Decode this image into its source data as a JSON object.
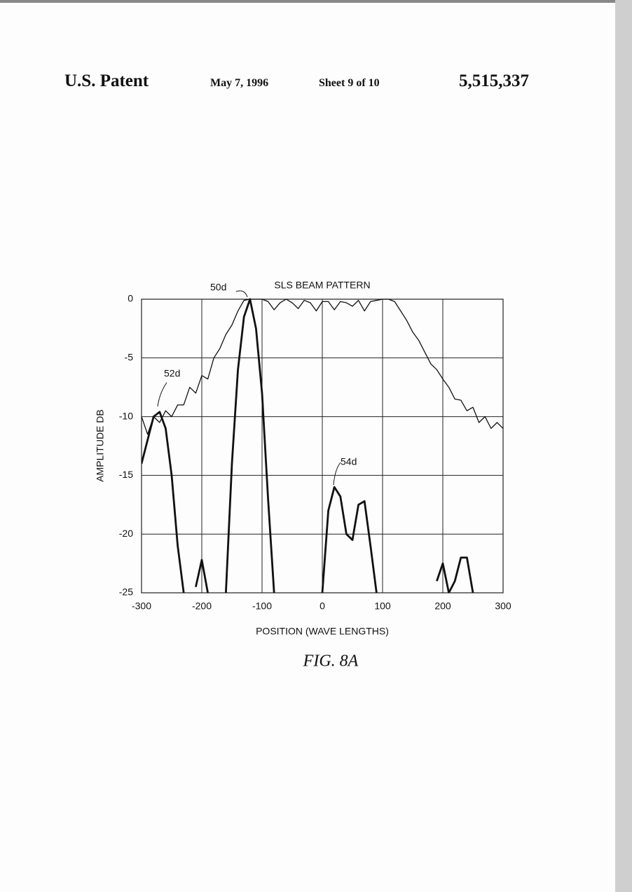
{
  "header": {
    "left": "U.S. Patent",
    "date": "May 7, 1996",
    "sheet": "Sheet 9 of 10",
    "number": "5,515,337"
  },
  "chart_data": {
    "type": "line",
    "title": "SLS BEAM PATTERN",
    "xlabel": "POSITION (WAVE LENGTHS)",
    "ylabel": "AMPLITUDE DB",
    "x": [
      -300,
      -290,
      -280,
      -270,
      -260,
      -250,
      -240,
      -230,
      -220,
      -210,
      -200,
      -190,
      -180,
      -170,
      -160,
      -150,
      -140,
      -130,
      -120,
      -110,
      -100,
      -90,
      -80,
      -70,
      -60,
      -50,
      -40,
      -30,
      -20,
      -10,
      0,
      10,
      20,
      30,
      40,
      50,
      60,
      70,
      80,
      90,
      100,
      110,
      120,
      130,
      140,
      150,
      160,
      170,
      180,
      190,
      200,
      210,
      220,
      230,
      240,
      250,
      260,
      270,
      280,
      290,
      300
    ],
    "series": [
      {
        "color": "#111111",
        "values": [
          -10,
          -11.5,
          -10,
          -10.5,
          -9.5,
          -10,
          -9,
          -9,
          -7.5,
          -8,
          -6.5,
          -6.8,
          -5,
          -4.2,
          -3,
          -2.2,
          -1,
          -0.1,
          0,
          0,
          0,
          -0.2,
          -0.9,
          -0.3,
          0,
          -0.3,
          -0.8,
          -0.1,
          -0.3,
          -1,
          -0.2,
          -0.2,
          -0.9,
          -0.2,
          -0.3,
          -0.6,
          -0.1,
          -1,
          -0.2,
          -0.1,
          0,
          0,
          -0.2,
          -1,
          -1.8,
          -2.8,
          -3.5,
          -4.5,
          -5.5,
          -6,
          -6.8,
          -7.5,
          -8.5,
          -8.6,
          -9.5,
          -9.2,
          -10.5,
          -10,
          -11,
          -10.5,
          -11
        ]
      },
      {
        "color": "#111111",
        "values": [
          -14,
          -12,
          -10,
          -9.6,
          -11,
          -15,
          -21,
          -25,
          null,
          -24.5,
          -22.2,
          -25,
          null,
          null,
          -25,
          -14,
          -6,
          -1.5,
          0,
          -2.5,
          -8,
          -17,
          -25,
          null,
          null,
          null,
          null,
          null,
          null,
          null,
          -25,
          -18,
          -16,
          -16.8,
          -20,
          -20.5,
          -17.5,
          -17.2,
          -21,
          -25,
          null,
          null,
          null,
          null,
          null,
          null,
          null,
          null,
          null,
          -24,
          -22.5,
          -25,
          -24,
          -22,
          -22,
          -25,
          null,
          null,
          null,
          null,
          null
        ]
      }
    ],
    "annotations": [
      "50d",
      "52d",
      "54d"
    ],
    "xlim": [
      -300,
      300
    ],
    "xticks": [
      -300,
      -200,
      -100,
      0,
      100,
      200,
      300
    ],
    "ylim": [
      -25,
      0
    ],
    "yticks": [
      0,
      -5,
      -10,
      -15,
      -20,
      -25
    ],
    "grid": true
  },
  "figure_label": "FIG. 8A"
}
